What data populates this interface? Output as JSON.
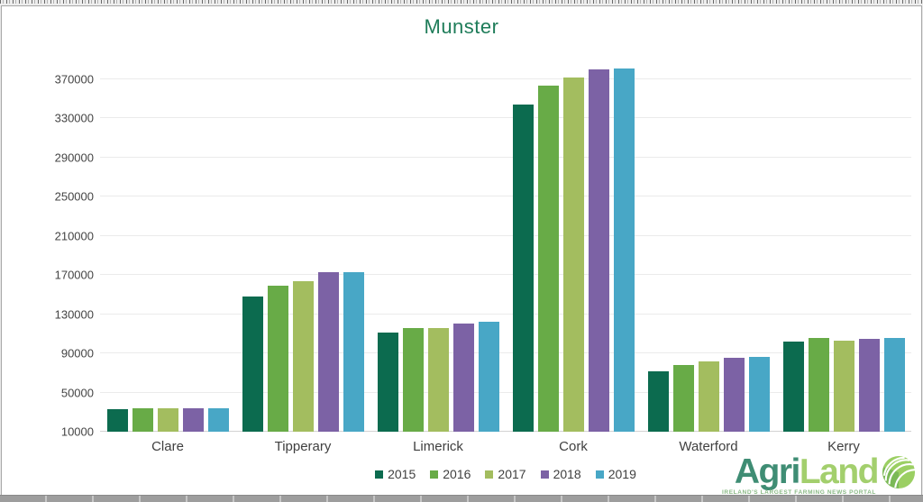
{
  "page": {
    "background": "spreadsheet"
  },
  "chart_data": {
    "type": "bar",
    "title": "Munster",
    "title_color": "#1e7c59",
    "categories": [
      "Clare",
      "Tipperary",
      "Limerick",
      "Cork",
      "Waterford",
      "Kerry"
    ],
    "series": [
      {
        "name": "2015",
        "color": "#0c6b4f",
        "values": [
          33000,
          148000,
          111000,
          344000,
          71500,
          102000
        ]
      },
      {
        "name": "2016",
        "color": "#68ab47",
        "values": [
          33500,
          159000,
          116000,
          363000,
          78000,
          106000
        ]
      },
      {
        "name": "2017",
        "color": "#a3bd5f",
        "values": [
          34000,
          164000,
          116000,
          371000,
          82000,
          103000
        ]
      },
      {
        "name": "2018",
        "color": "#7c62a5",
        "values": [
          33500,
          173000,
          120000,
          380000,
          85500,
          105000
        ]
      },
      {
        "name": "2019",
        "color": "#48a7c6",
        "values": [
          34000,
          173000,
          122000,
          381000,
          86500,
          106000
        ]
      }
    ],
    "y_ticks": [
      10000,
      50000,
      90000,
      130000,
      170000,
      210000,
      250000,
      290000,
      330000,
      370000
    ],
    "ylim": [
      10000,
      395000
    ],
    "xlabel": "",
    "ylabel": "",
    "grid": true,
    "legend_position": "bottom"
  },
  "logo": {
    "brand_agri": "Agri",
    "brand_land": "Land",
    "tagline": "IRELAND'S LARGEST FARMING NEWS PORTAL",
    "agri_color": "#3f8d74",
    "land_color": "#a3cf6d",
    "icon": "field-swirl-icon"
  }
}
